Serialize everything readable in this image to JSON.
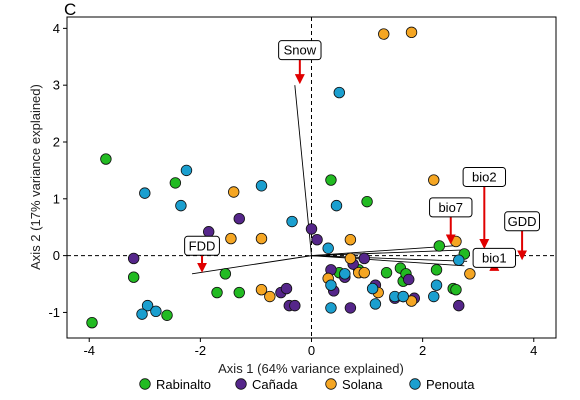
{
  "panel_label": "C",
  "chart_data": {
    "type": "scatter",
    "xlabel": "Axis 1 (64% variance explained)",
    "ylabel": "Axis 2 (17% variance explained)",
    "xlim": [
      -4.4,
      4.4
    ],
    "ylim": [
      -1.45,
      4.2
    ],
    "x_ticks": [
      -4,
      -2,
      0,
      2,
      4
    ],
    "y_ticks": [
      -1,
      0,
      1,
      2,
      3,
      4
    ],
    "reference_lines": {
      "x": 0,
      "y": 0,
      "style": "dashed"
    },
    "grid": false,
    "legend_position": "bottom",
    "series": [
      {
        "name": "Rabinalto",
        "color": "#22BB22",
        "points": [
          [
            -3.7,
            1.7
          ],
          [
            -3.95,
            -1.18
          ],
          [
            -3.2,
            -0.38
          ],
          [
            -2.45,
            1.28
          ],
          [
            -2.6,
            -1.05
          ],
          [
            -1.7,
            -0.65
          ],
          [
            -1.3,
            -0.65
          ],
          [
            -1.55,
            -0.32
          ],
          [
            0.35,
            1.33
          ],
          [
            0.5,
            -0.3
          ],
          [
            1,
            0.95
          ],
          [
            1.6,
            -0.22
          ],
          [
            1.65,
            -0.45
          ],
          [
            1.7,
            -0.32
          ],
          [
            2.25,
            -0.25
          ],
          [
            2.55,
            -0.58
          ],
          [
            2.75,
            0.03
          ],
          [
            2.3,
            0.17
          ],
          [
            2.6,
            -0.6
          ],
          [
            1.35,
            -0.3
          ],
          [
            0.85,
            -0.25
          ]
        ]
      },
      {
        "name": "Cañada",
        "color": "#55268A",
        "points": [
          [
            -3.2,
            -0.05
          ],
          [
            -1.85,
            0.42
          ],
          [
            -1.3,
            0.65
          ],
          [
            -0.55,
            -0.65
          ],
          [
            -0.4,
            -0.88
          ],
          [
            -0.3,
            -0.88
          ],
          [
            -0.45,
            -0.58
          ],
          [
            0,
            0.47
          ],
          [
            0.1,
            0.28
          ],
          [
            0.35,
            -0.25
          ],
          [
            0.6,
            -0.38
          ],
          [
            0.75,
            -0.15
          ],
          [
            0.7,
            -0.92
          ],
          [
            1.5,
            -0.75
          ],
          [
            1.75,
            -0.42
          ],
          [
            1.85,
            -0.75
          ],
          [
            2.65,
            -0.88
          ],
          [
            0.4,
            -0.62
          ],
          [
            1.15,
            -0.52
          ],
          [
            0.95,
            -0.05
          ]
        ]
      },
      {
        "name": "Solana",
        "color": "#F5A623",
        "points": [
          [
            -1.4,
            1.12
          ],
          [
            -1.45,
            0.3
          ],
          [
            -0.9,
            0.3
          ],
          [
            -0.9,
            -0.6
          ],
          [
            -0.75,
            -0.72
          ],
          [
            0.3,
            -0.4
          ],
          [
            0.7,
            -0.05
          ],
          [
            0.7,
            0.28
          ],
          [
            0.85,
            -0.3
          ],
          [
            0.95,
            -0.3
          ],
          [
            1.3,
            3.9
          ],
          [
            1.8,
            3.93
          ],
          [
            1.2,
            -0.65
          ],
          [
            1.65,
            -0.72
          ],
          [
            1.8,
            -0.8
          ],
          [
            2.2,
            1.33
          ],
          [
            2.6,
            0.25
          ],
          [
            2.85,
            -0.32
          ]
        ]
      },
      {
        "name": "Penouta",
        "color": "#1B9FCF",
        "points": [
          [
            -3,
            1.1
          ],
          [
            -2.25,
            1.5
          ],
          [
            -2.35,
            0.88
          ],
          [
            -2.95,
            -0.88
          ],
          [
            -3.05,
            -1.03
          ],
          [
            -2.8,
            -0.98
          ],
          [
            -0.9,
            1.23
          ],
          [
            -0.35,
            0.6
          ],
          [
            0.5,
            2.87
          ],
          [
            0.45,
            0.88
          ],
          [
            0.3,
            0.13
          ],
          [
            0.35,
            -0.52
          ],
          [
            0.35,
            -0.92
          ],
          [
            0.6,
            -0.32
          ],
          [
            1.1,
            -0.58
          ],
          [
            1.15,
            -0.85
          ],
          [
            1.5,
            -0.72
          ],
          [
            1.65,
            -0.72
          ],
          [
            2.25,
            -0.52
          ],
          [
            2.2,
            -0.72
          ],
          [
            2.65,
            -0.08
          ]
        ]
      }
    ],
    "loadings": [
      {
        "name": "Snow",
        "x": -0.3,
        "y": 3.0
      },
      {
        "name": "FDD",
        "x": -2.15,
        "y": -0.32
      },
      {
        "name": "bio7",
        "x": 2.65,
        "y": 0.18
      },
      {
        "name": "bio2",
        "x": 2.75,
        "y": 0.1
      },
      {
        "name": "GDD",
        "x": 2.8,
        "y": -0.1
      },
      {
        "name": "bio1",
        "x": 2.75,
        "y": -0.18
      }
    ]
  }
}
